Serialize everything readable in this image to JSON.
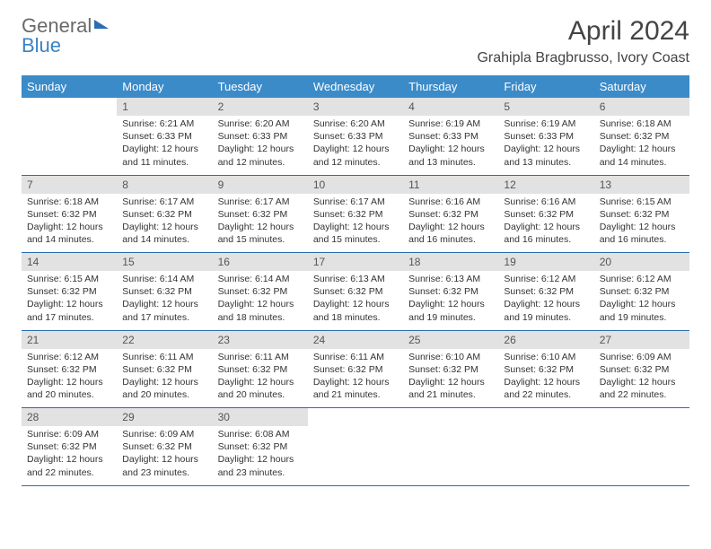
{
  "logo": {
    "word1": "General",
    "word2": "Blue"
  },
  "header": {
    "month_title": "April 2024",
    "location": "Grahipla Bragbrusso, Ivory Coast"
  },
  "day_headers": [
    "Sunday",
    "Monday",
    "Tuesday",
    "Wednesday",
    "Thursday",
    "Friday",
    "Saturday"
  ],
  "colors": {
    "header_bg": "#3b8bc9",
    "header_text": "#ffffff",
    "daynum_bg": "#e2e2e2",
    "row_border": "#2a6db0",
    "logo_gray": "#6a6a6a",
    "logo_blue": "#3b82c4"
  },
  "weeks": [
    {
      "nums": [
        "",
        "1",
        "2",
        "3",
        "4",
        "5",
        "6"
      ],
      "cells": [
        {
          "empty": true
        },
        {
          "sunrise": "Sunrise: 6:21 AM",
          "sunset": "Sunset: 6:33 PM",
          "daylight": "Daylight: 12 hours and 11 minutes."
        },
        {
          "sunrise": "Sunrise: 6:20 AM",
          "sunset": "Sunset: 6:33 PM",
          "daylight": "Daylight: 12 hours and 12 minutes."
        },
        {
          "sunrise": "Sunrise: 6:20 AM",
          "sunset": "Sunset: 6:33 PM",
          "daylight": "Daylight: 12 hours and 12 minutes."
        },
        {
          "sunrise": "Sunrise: 6:19 AM",
          "sunset": "Sunset: 6:33 PM",
          "daylight": "Daylight: 12 hours and 13 minutes."
        },
        {
          "sunrise": "Sunrise: 6:19 AM",
          "sunset": "Sunset: 6:33 PM",
          "daylight": "Daylight: 12 hours and 13 minutes."
        },
        {
          "sunrise": "Sunrise: 6:18 AM",
          "sunset": "Sunset: 6:32 PM",
          "daylight": "Daylight: 12 hours and 14 minutes."
        }
      ]
    },
    {
      "nums": [
        "7",
        "8",
        "9",
        "10",
        "11",
        "12",
        "13"
      ],
      "cells": [
        {
          "sunrise": "Sunrise: 6:18 AM",
          "sunset": "Sunset: 6:32 PM",
          "daylight": "Daylight: 12 hours and 14 minutes."
        },
        {
          "sunrise": "Sunrise: 6:17 AM",
          "sunset": "Sunset: 6:32 PM",
          "daylight": "Daylight: 12 hours and 14 minutes."
        },
        {
          "sunrise": "Sunrise: 6:17 AM",
          "sunset": "Sunset: 6:32 PM",
          "daylight": "Daylight: 12 hours and 15 minutes."
        },
        {
          "sunrise": "Sunrise: 6:17 AM",
          "sunset": "Sunset: 6:32 PM",
          "daylight": "Daylight: 12 hours and 15 minutes."
        },
        {
          "sunrise": "Sunrise: 6:16 AM",
          "sunset": "Sunset: 6:32 PM",
          "daylight": "Daylight: 12 hours and 16 minutes."
        },
        {
          "sunrise": "Sunrise: 6:16 AM",
          "sunset": "Sunset: 6:32 PM",
          "daylight": "Daylight: 12 hours and 16 minutes."
        },
        {
          "sunrise": "Sunrise: 6:15 AM",
          "sunset": "Sunset: 6:32 PM",
          "daylight": "Daylight: 12 hours and 16 minutes."
        }
      ]
    },
    {
      "nums": [
        "14",
        "15",
        "16",
        "17",
        "18",
        "19",
        "20"
      ],
      "cells": [
        {
          "sunrise": "Sunrise: 6:15 AM",
          "sunset": "Sunset: 6:32 PM",
          "daylight": "Daylight: 12 hours and 17 minutes."
        },
        {
          "sunrise": "Sunrise: 6:14 AM",
          "sunset": "Sunset: 6:32 PM",
          "daylight": "Daylight: 12 hours and 17 minutes."
        },
        {
          "sunrise": "Sunrise: 6:14 AM",
          "sunset": "Sunset: 6:32 PM",
          "daylight": "Daylight: 12 hours and 18 minutes."
        },
        {
          "sunrise": "Sunrise: 6:13 AM",
          "sunset": "Sunset: 6:32 PM",
          "daylight": "Daylight: 12 hours and 18 minutes."
        },
        {
          "sunrise": "Sunrise: 6:13 AM",
          "sunset": "Sunset: 6:32 PM",
          "daylight": "Daylight: 12 hours and 19 minutes."
        },
        {
          "sunrise": "Sunrise: 6:12 AM",
          "sunset": "Sunset: 6:32 PM",
          "daylight": "Daylight: 12 hours and 19 minutes."
        },
        {
          "sunrise": "Sunrise: 6:12 AM",
          "sunset": "Sunset: 6:32 PM",
          "daylight": "Daylight: 12 hours and 19 minutes."
        }
      ]
    },
    {
      "nums": [
        "21",
        "22",
        "23",
        "24",
        "25",
        "26",
        "27"
      ],
      "cells": [
        {
          "sunrise": "Sunrise: 6:12 AM",
          "sunset": "Sunset: 6:32 PM",
          "daylight": "Daylight: 12 hours and 20 minutes."
        },
        {
          "sunrise": "Sunrise: 6:11 AM",
          "sunset": "Sunset: 6:32 PM",
          "daylight": "Daylight: 12 hours and 20 minutes."
        },
        {
          "sunrise": "Sunrise: 6:11 AM",
          "sunset": "Sunset: 6:32 PM",
          "daylight": "Daylight: 12 hours and 20 minutes."
        },
        {
          "sunrise": "Sunrise: 6:11 AM",
          "sunset": "Sunset: 6:32 PM",
          "daylight": "Daylight: 12 hours and 21 minutes."
        },
        {
          "sunrise": "Sunrise: 6:10 AM",
          "sunset": "Sunset: 6:32 PM",
          "daylight": "Daylight: 12 hours and 21 minutes."
        },
        {
          "sunrise": "Sunrise: 6:10 AM",
          "sunset": "Sunset: 6:32 PM",
          "daylight": "Daylight: 12 hours and 22 minutes."
        },
        {
          "sunrise": "Sunrise: 6:09 AM",
          "sunset": "Sunset: 6:32 PM",
          "daylight": "Daylight: 12 hours and 22 minutes."
        }
      ]
    },
    {
      "nums": [
        "28",
        "29",
        "30",
        "",
        "",
        "",
        ""
      ],
      "cells": [
        {
          "sunrise": "Sunrise: 6:09 AM",
          "sunset": "Sunset: 6:32 PM",
          "daylight": "Daylight: 12 hours and 22 minutes."
        },
        {
          "sunrise": "Sunrise: 6:09 AM",
          "sunset": "Sunset: 6:32 PM",
          "daylight": "Daylight: 12 hours and 23 minutes."
        },
        {
          "sunrise": "Sunrise: 6:08 AM",
          "sunset": "Sunset: 6:32 PM",
          "daylight": "Daylight: 12 hours and 23 minutes."
        },
        {
          "empty": true
        },
        {
          "empty": true
        },
        {
          "empty": true
        },
        {
          "empty": true
        }
      ]
    }
  ]
}
